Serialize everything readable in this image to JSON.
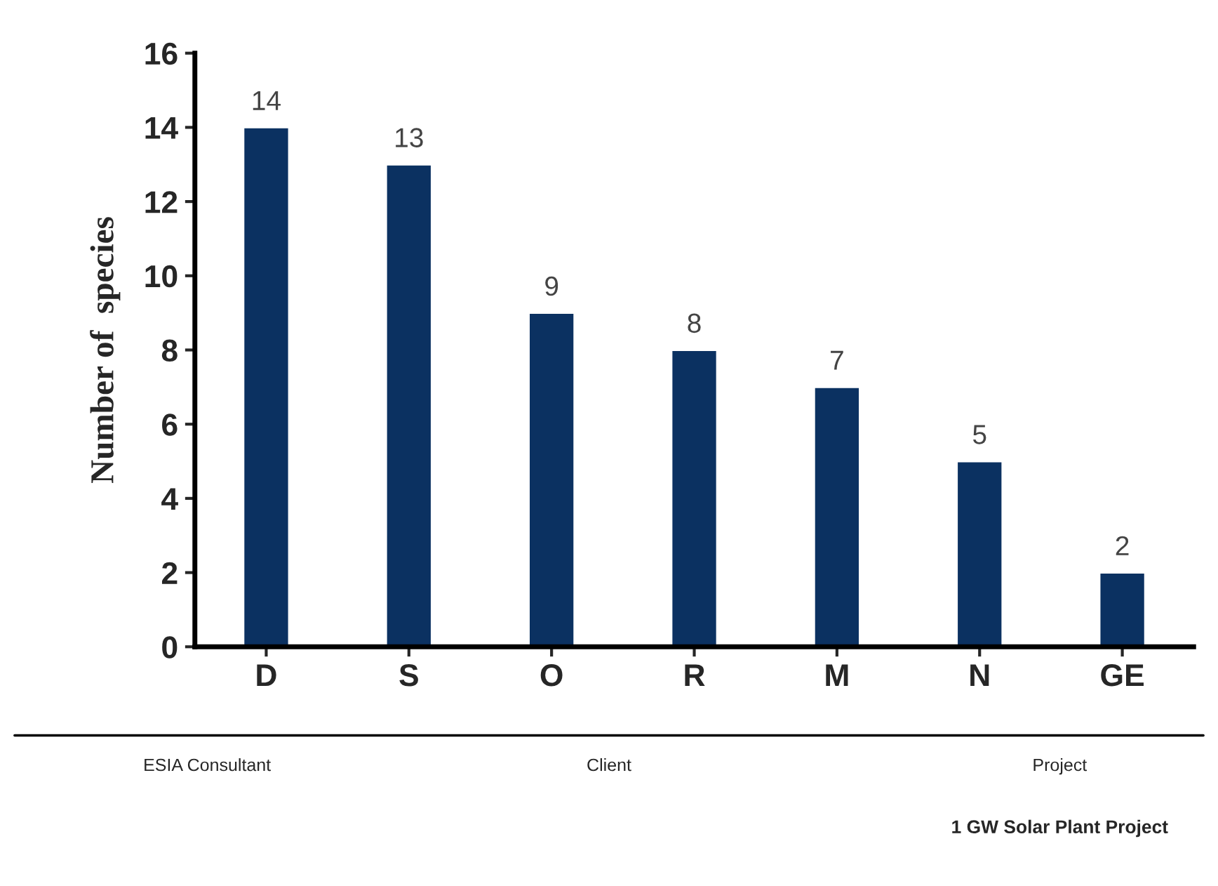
{
  "chart_data": {
    "type": "bar",
    "ylabel": "Number of  species",
    "categories": [
      "D",
      "S",
      "O",
      "R",
      "M",
      "N",
      "GE"
    ],
    "values": [
      14,
      13,
      9,
      8,
      7,
      5,
      2
    ],
    "color": "#0b3161",
    "ylim": [
      0,
      16
    ],
    "yticks": [
      0,
      2,
      4,
      6,
      8,
      10,
      12,
      14,
      16
    ],
    "grid": false,
    "data_labels": true,
    "annotations": [
      "ESIA Consultant",
      "Client",
      "Project",
      "1 GW Solar Plant Project"
    ]
  }
}
